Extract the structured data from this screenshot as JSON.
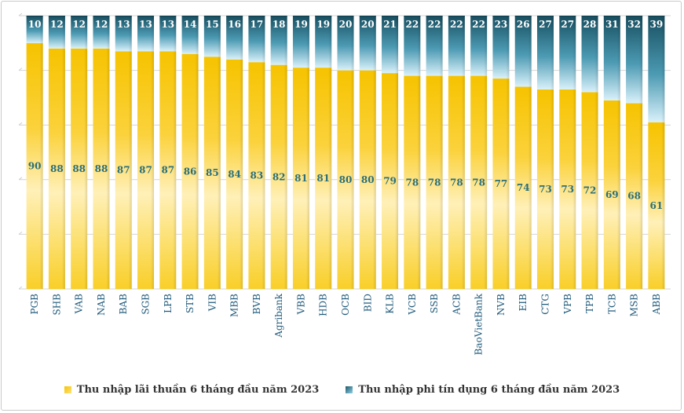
{
  "chart_data": {
    "type": "bar",
    "stacked": true,
    "orientation": "vertical",
    "categories": [
      "PGB",
      "SHB",
      "VAB",
      "NAB",
      "BAB",
      "SGB",
      "LPB",
      "STB",
      "VIB",
      "MBB",
      "BVB",
      "Agribank",
      "VBB",
      "HDB",
      "OCB",
      "BID",
      "KLB",
      "VCB",
      "SSB",
      "ACB",
      "BaoVietBank",
      "NVB",
      "EIB",
      "CTG",
      "VPB",
      "TPB",
      "TCB",
      "MSB",
      "ABB"
    ],
    "series": [
      {
        "name": "Thu nhập lãi thuần 6 tháng đầu năm 2023",
        "color": "#f7c600",
        "values": [
          90,
          88,
          88,
          88,
          87,
          87,
          87,
          86,
          85,
          84,
          83,
          82,
          81,
          81,
          80,
          80,
          79,
          78,
          78,
          78,
          78,
          77,
          74,
          73,
          73,
          72,
          69,
          68,
          61
        ]
      },
      {
        "name": "Thu nhập phi tín dụng 6 tháng đầu năm 2023",
        "color": "#1f5a6b",
        "values": [
          10,
          12,
          12,
          12,
          13,
          13,
          13,
          14,
          15,
          16,
          17,
          18,
          19,
          19,
          20,
          20,
          21,
          22,
          22,
          22,
          22,
          23,
          26,
          27,
          27,
          28,
          31,
          32,
          39
        ]
      }
    ],
    "ylim": [
      0,
      100
    ],
    "grid": true,
    "legend_position": "bottom"
  }
}
